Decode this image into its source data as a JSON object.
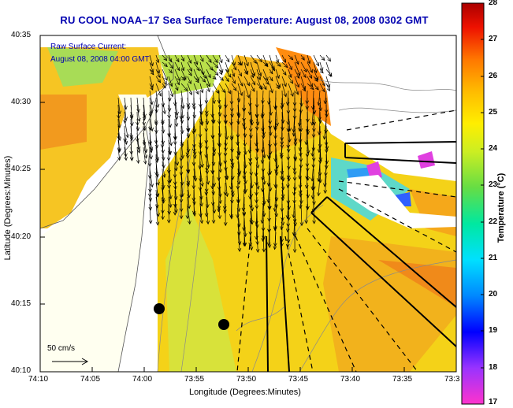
{
  "title": "RU COOL  NOAA–17  Sea Surface Temperature:  August 08, 2008 0302 GMT",
  "colors": {
    "title": "#0000b0",
    "legend_text": "#0000b0"
  },
  "legend": {
    "line1": "Raw Surface Current:",
    "line2": "August 08, 2008 04:00 GMT"
  },
  "scale": {
    "label": "50 cm/s"
  },
  "axes": {
    "x_label": "Longitude (Degrees:Minutes)",
    "y_label": "Latitude (Degrees:Minutes)",
    "x_ticks": [
      "74:10",
      "74:05",
      "74:00",
      "73:55",
      "73:50",
      "73:45",
      "73:40",
      "73:35",
      "73:3"
    ],
    "y_ticks": [
      "40:35",
      "40:30",
      "40:25",
      "40:20",
      "40:15",
      "40:10"
    ]
  },
  "colorbar": {
    "label": "Temperature (°C)",
    "ticks": [
      "28",
      "27",
      "26",
      "25",
      "24",
      "23",
      "22",
      "21",
      "20",
      "19",
      "18",
      "17"
    ],
    "min": 17,
    "max": 28
  }
}
